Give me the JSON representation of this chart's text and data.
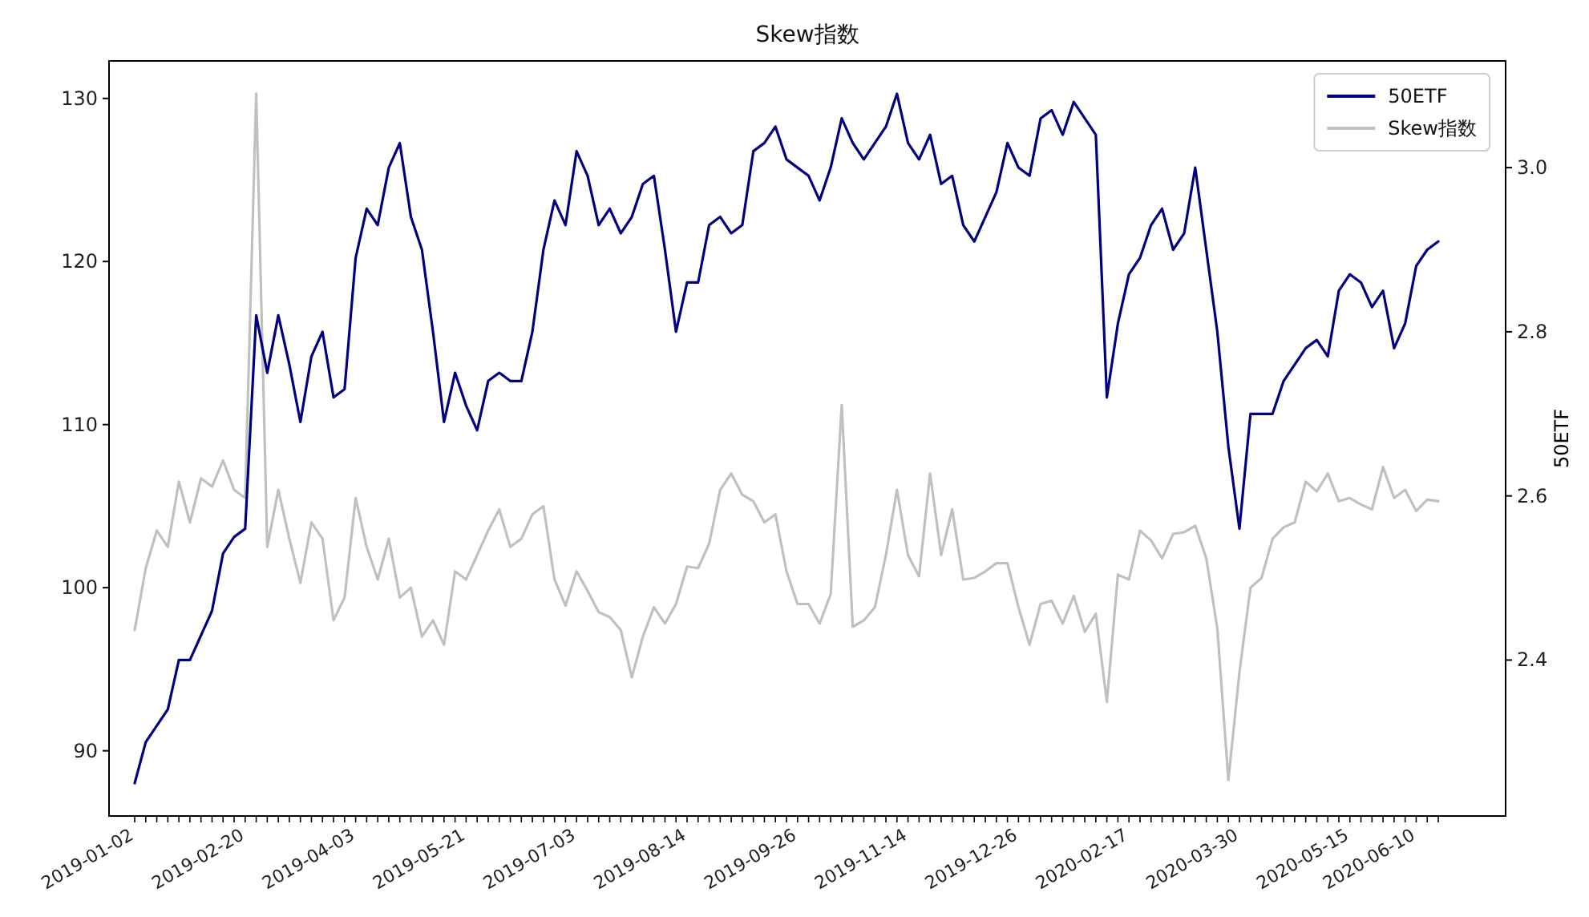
{
  "chart_data": {
    "type": "line",
    "title": "Skew指数",
    "y2label": "50ETF",
    "categories": [
      "2019-01-02",
      null,
      null,
      null,
      null,
      null,
      null,
      null,
      null,
      null,
      "2019-02-20",
      null,
      null,
      null,
      null,
      null,
      null,
      null,
      null,
      null,
      "2019-04-03",
      null,
      null,
      null,
      null,
      null,
      null,
      null,
      null,
      null,
      "2019-05-21",
      null,
      null,
      null,
      null,
      null,
      null,
      null,
      null,
      null,
      "2019-07-03",
      null,
      null,
      null,
      null,
      null,
      null,
      null,
      null,
      null,
      "2019-08-14",
      null,
      null,
      null,
      null,
      null,
      null,
      null,
      null,
      null,
      "2019-09-26",
      null,
      null,
      null,
      null,
      null,
      null,
      null,
      null,
      null,
      "2019-11-14",
      null,
      null,
      null,
      null,
      null,
      null,
      null,
      null,
      null,
      "2019-12-26",
      null,
      null,
      null,
      null,
      null,
      null,
      null,
      null,
      null,
      "2020-02-17",
      null,
      null,
      null,
      null,
      null,
      null,
      null,
      null,
      null,
      "2020-03-30",
      null,
      null,
      null,
      null,
      null,
      null,
      null,
      null,
      null,
      "2020-05-15",
      null,
      null,
      null,
      null,
      null,
      "2020-06-10",
      null,
      null
    ],
    "series": [
      {
        "name": "50ETF",
        "color": "#000080",
        "axis": "y2",
        "values": [
          2.25,
          2.3,
          2.32,
          2.34,
          2.4,
          2.4,
          2.43,
          2.46,
          2.53,
          2.55,
          2.56,
          2.82,
          2.75,
          2.82,
          2.76,
          2.69,
          2.77,
          2.8,
          2.72,
          2.73,
          2.89,
          2.95,
          2.93,
          3.0,
          3.03,
          2.94,
          2.9,
          2.8,
          2.69,
          2.75,
          2.71,
          2.68,
          2.74,
          2.75,
          2.74,
          2.74,
          2.8,
          2.9,
          2.96,
          2.93,
          3.02,
          2.99,
          2.93,
          2.95,
          2.92,
          2.94,
          2.98,
          2.99,
          2.9,
          2.8,
          2.86,
          2.86,
          2.93,
          2.94,
          2.92,
          2.93,
          3.02,
          3.03,
          3.05,
          3.01,
          3.0,
          2.99,
          2.96,
          3.0,
          3.06,
          3.03,
          3.01,
          3.03,
          3.05,
          3.09,
          3.03,
          3.01,
          3.04,
          2.98,
          2.99,
          2.93,
          2.91,
          2.94,
          2.97,
          3.03,
          3.0,
          2.99,
          3.06,
          3.07,
          3.04,
          3.08,
          3.06,
          3.04,
          2.72,
          2.81,
          2.87,
          2.89,
          2.93,
          2.95,
          2.9,
          2.92,
          3.0,
          2.9,
          2.8,
          2.66,
          2.56,
          2.7,
          2.7,
          2.7,
          2.74,
          2.76,
          2.78,
          2.79,
          2.77,
          2.85,
          2.87,
          2.86,
          2.83,
          2.85,
          2.78,
          2.81,
          2.88,
          2.9,
          2.91
        ]
      },
      {
        "name": "Skew指数",
        "color": "#c0c0c0",
        "values": [
          97.4,
          101.2,
          103.5,
          102.5,
          106.5,
          104.0,
          106.7,
          106.2,
          107.8,
          106.0,
          105.5,
          130.3,
          102.5,
          106.0,
          103.0,
          100.3,
          104.0,
          103.0,
          98.0,
          99.4,
          105.5,
          102.5,
          100.5,
          103.0,
          99.4,
          100.0,
          97.0,
          98.0,
          96.5,
          101.0,
          100.5,
          102.0,
          103.5,
          104.8,
          102.5,
          103.0,
          104.5,
          105.0,
          100.5,
          98.9,
          101.0,
          99.8,
          98.5,
          98.2,
          97.4,
          94.5,
          97.0,
          98.8,
          97.8,
          99.0,
          101.3,
          101.2,
          102.7,
          106.0,
          107.0,
          105.7,
          105.3,
          104.0,
          104.5,
          101.0,
          99.0,
          99.0,
          97.8,
          99.6,
          111.2,
          97.6,
          98.0,
          98.8,
          102.0,
          106.0,
          102.0,
          100.7,
          107.0,
          102.0,
          104.8,
          100.5,
          100.6,
          101.0,
          101.5,
          101.5,
          98.8,
          96.5,
          99.0,
          99.2,
          97.8,
          99.5,
          97.3,
          98.4,
          93.0,
          100.8,
          100.5,
          103.5,
          102.9,
          101.8,
          103.3,
          103.4,
          103.8,
          101.8,
          97.5,
          88.2,
          94.8,
          100.0,
          100.6,
          103.0,
          103.7,
          104.0,
          106.5,
          105.9,
          107.0,
          105.3,
          105.5,
          105.1,
          104.8,
          107.4,
          105.5,
          106.0,
          104.7,
          105.4,
          105.3
        ]
      }
    ],
    "ylim": [
      86,
      132.3
    ],
    "yticks": [
      90,
      100,
      110,
      120,
      130
    ],
    "y2lim": [
      2.21,
      3.13
    ],
    "y2ticks": [
      2.4,
      2.6,
      2.8,
      {
        "value": 3,
        "label": "3.0"
      }
    ],
    "legend": "top right"
  }
}
